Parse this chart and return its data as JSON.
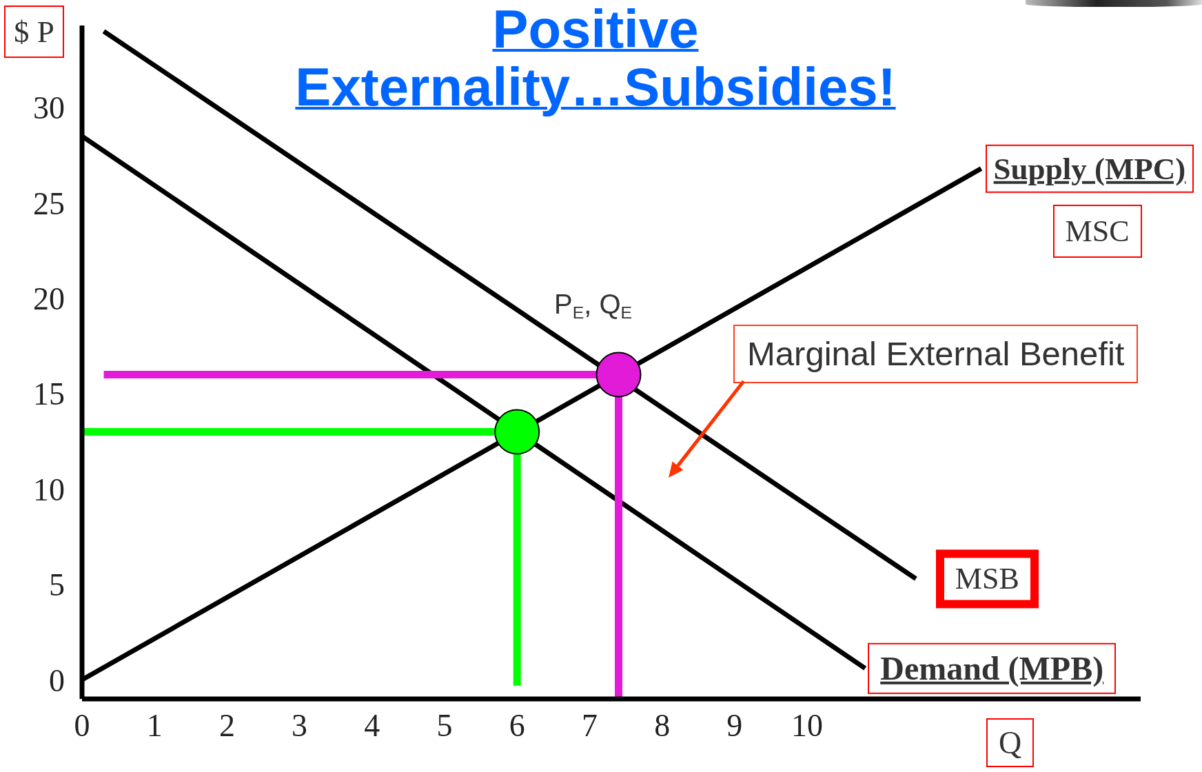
{
  "chart_data": {
    "type": "line",
    "title": "Positive Externality…Subsidies!",
    "xlabel": "Q",
    "ylabel": "$ P",
    "xlim": [
      0,
      14.6
    ],
    "xticks": [
      0,
      1,
      2,
      3,
      4,
      5,
      6,
      7,
      8,
      9,
      10
    ],
    "ylim": [
      -1,
      34.3
    ],
    "yticks": [
      0,
      5,
      10,
      15,
      20,
      25,
      30
    ],
    "series": [
      {
        "name": "Supply (MPC)",
        "color": "#000000",
        "x": [
          0,
          12.4
        ],
        "values": [
          0,
          26.8
        ]
      },
      {
        "name": "MSB",
        "color": "#000000",
        "x": [
          0.3,
          11.5
        ],
        "values": [
          34,
          5.3
        ]
      },
      {
        "name": "Demand (MPB)",
        "color": "#000000",
        "x": [
          0,
          10.8
        ],
        "values": [
          28.5,
          0.6
        ]
      },
      {
        "color": "#e21bd9",
        "x": [
          0.3,
          7.4,
          7.4
        ],
        "values": [
          16,
          16,
          -1
        ]
      },
      {
        "color": "#00ff00",
        "x": [
          0,
          6,
          6
        ],
        "values": [
          13,
          13,
          -0.3
        ]
      },
      {
        "type": "scatter",
        "color": "#e21bd9",
        "x": [
          7.4
        ],
        "values": [
          16
        ],
        "marker": "circle"
      },
      {
        "type": "scatter",
        "color": "#00ff00",
        "x": [
          6
        ],
        "values": [
          13
        ],
        "marker": "circle"
      }
    ],
    "annotations": [
      "MSC",
      {
        "text": "P$_{E}$, Q$_{E}$",
        "x": 7.4,
        "y": 16
      },
      "Marginal External Benefit"
    ]
  }
}
